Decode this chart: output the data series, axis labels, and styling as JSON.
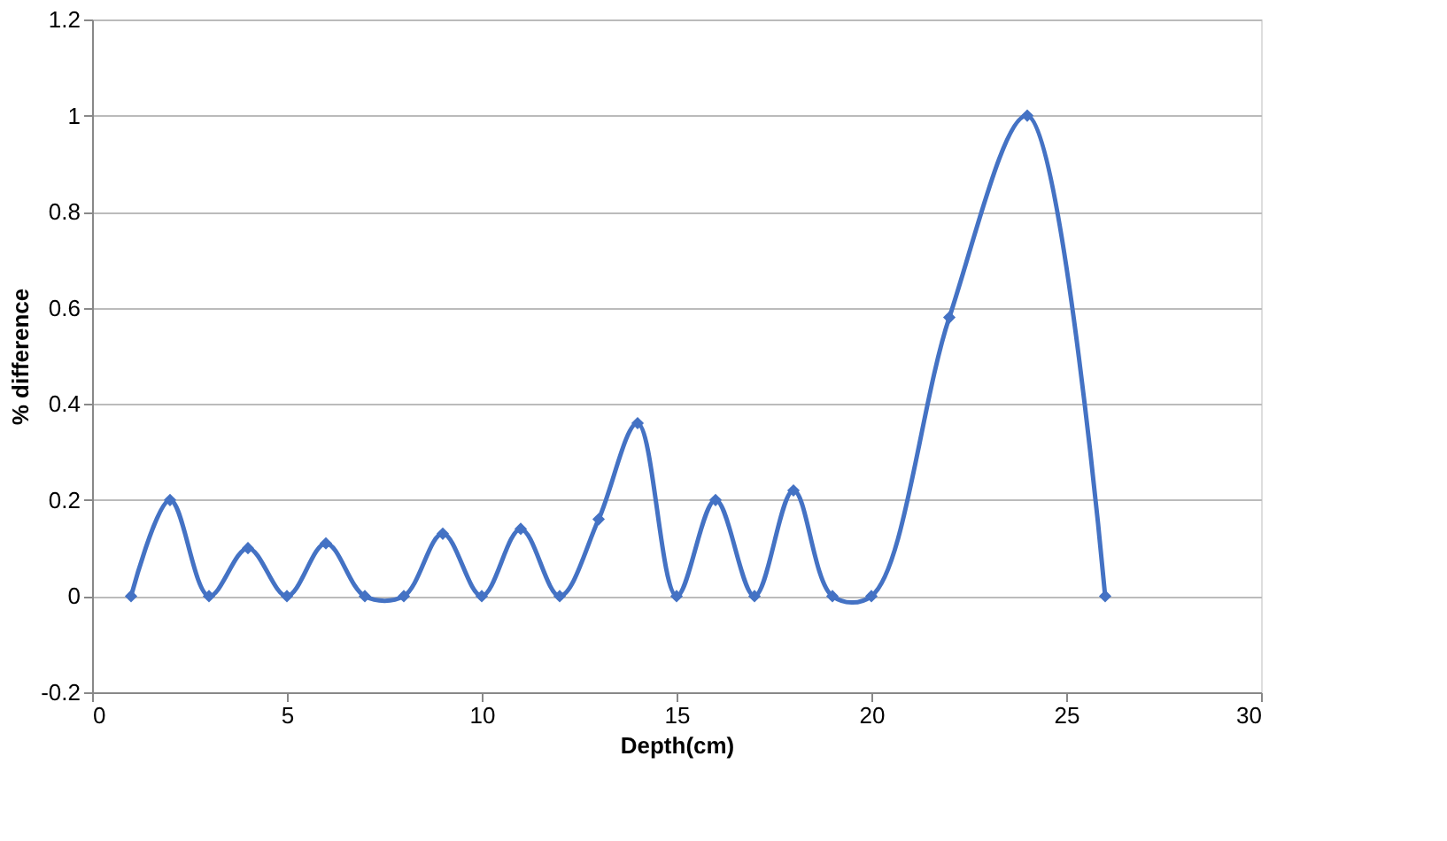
{
  "chart_data": {
    "type": "line",
    "xlabel": "Depth(cm)",
    "ylabel": "% difference",
    "x": [
      1,
      2,
      3,
      4,
      5,
      6,
      7,
      8,
      9,
      10,
      11,
      12,
      13,
      14,
      15,
      16,
      17,
      18,
      19,
      20,
      22,
      24,
      26
    ],
    "series": [
      {
        "color": "#4472c4",
        "values": [
          0,
          0.2,
          0,
          0.1,
          0,
          0.11,
          0,
          0,
          0.13,
          0,
          0.14,
          0,
          0.16,
          0.36,
          0,
          0.2,
          0,
          0.22,
          0,
          0,
          0.58,
          1.0,
          0
        ]
      }
    ],
    "xlim": [
      0,
      30
    ],
    "xticks": [
      0,
      5,
      10,
      15,
      20,
      25,
      30
    ],
    "ylim": [
      -0.2,
      1.2
    ],
    "yticks": [
      -0.2,
      0,
      0.2,
      0.4,
      0.6,
      0.8,
      1,
      1.2
    ],
    "grid": "y",
    "marker": "diamond",
    "line_style": "solid",
    "legend": false
  }
}
